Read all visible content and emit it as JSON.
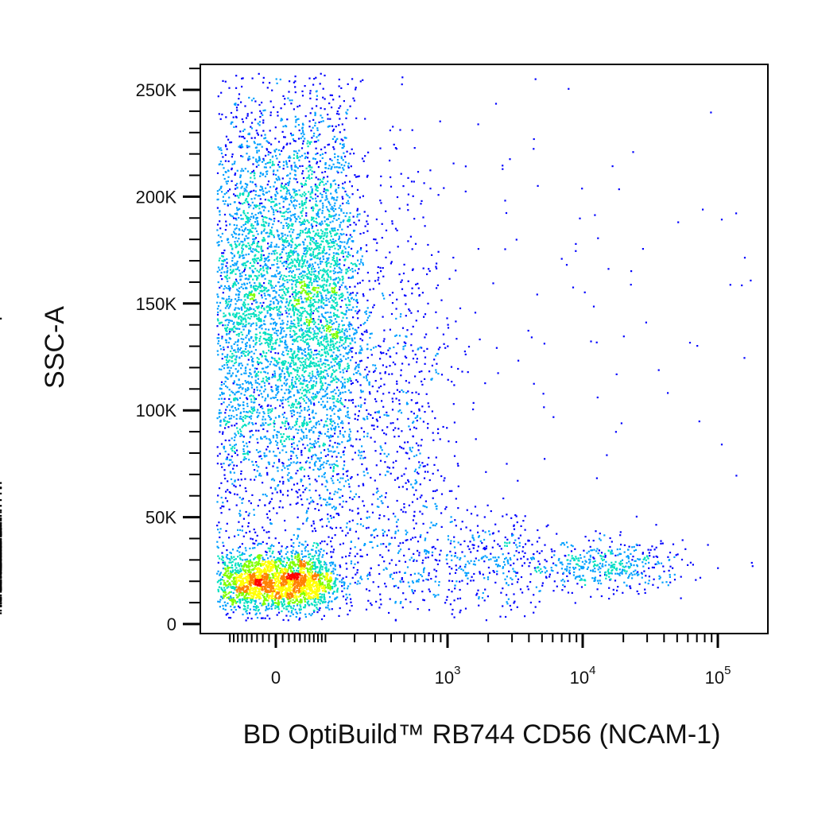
{
  "chart_data": {
    "type": "scatter",
    "subtype": "flow-cytometry density dot plot",
    "xlabel": "BD OptiBuild™ RB744 CD56 (NCAM-1)",
    "ylabel": "SSC-A",
    "x_scale": "biexponential",
    "x_ticks": [
      {
        "value": 0,
        "label": "0"
      },
      {
        "value": 1000,
        "base": "10",
        "exp": "3"
      },
      {
        "value": 10000,
        "base": "10",
        "exp": "4"
      },
      {
        "value": 100000,
        "base": "10",
        "exp": "5"
      }
    ],
    "y_ticks": [
      {
        "value": 0,
        "label": "0"
      },
      {
        "value": 50000,
        "label": "50K"
      },
      {
        "value": 100000,
        "label": "100K"
      },
      {
        "value": 150000,
        "label": "150K"
      },
      {
        "value": 200000,
        "label": "200K"
      },
      {
        "value": 250000,
        "label": "250K"
      }
    ],
    "ylim": [
      0,
      262144
    ],
    "grid": false,
    "legend": "none",
    "populations": [
      {
        "x_center": 20,
        "y_center": 150000,
        "x_spread": 90,
        "y_spread": 50000,
        "events": 5200,
        "density": "high"
      },
      {
        "x_center": 0,
        "y_center": 20000,
        "x_spread": 60,
        "y_spread": 7000,
        "events": 2200,
        "density": "very high"
      },
      {
        "x_center": 150,
        "y_center": 90000,
        "x_spread": 400,
        "y_spread": 60000,
        "events": 1600,
        "density": "medium"
      },
      {
        "x_center": 500,
        "y_center": 30000,
        "x_spread": 2000,
        "y_spread": 12000,
        "events": 700,
        "density": "low"
      },
      {
        "x_center": 15000,
        "y_center": 27000,
        "x_spread": 10000,
        "y_spread": 6000,
        "events": 450,
        "density": "low"
      },
      {
        "x_center": 3000,
        "y_center": 150000,
        "x_spread": 10000,
        "y_spread": 60000,
        "events": 220,
        "density": "sparse"
      }
    ],
    "colormap": [
      "#0000ff",
      "#00a0ff",
      "#00e0c0",
      "#80ff00",
      "#ffff00",
      "#ff8000",
      "#ff0000"
    ]
  }
}
